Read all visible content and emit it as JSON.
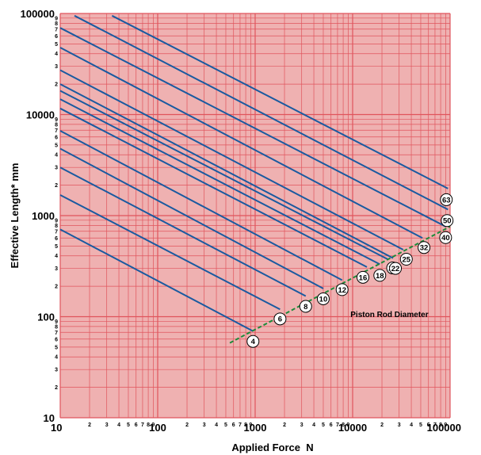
{
  "chart_data": {
    "type": "line",
    "title": "",
    "xlabel": "Applied Force  N",
    "ylabel": "Effective Length* mm",
    "xscale": "log",
    "yscale": "log",
    "xlim": [
      10,
      100000
    ],
    "ylim": [
      10,
      100000
    ],
    "grid": true,
    "x_major_ticks": [
      "10",
      "100",
      "1000",
      "10000",
      "100000"
    ],
    "x_minor_ticks": [
      "2",
      "3",
      "4",
      "5",
      "6",
      "7",
      "8",
      "9"
    ],
    "y_major_ticks": [
      "10",
      "100",
      "1000",
      "10000",
      "100000"
    ],
    "y_minor_ticks": [
      "2",
      "3",
      "4",
      "5",
      "6",
      "7",
      "8",
      "9"
    ],
    "annotation": "Piston Rod Diameter",
    "series": [
      {
        "name": "4",
        "x": [
          10,
          950
        ],
        "y": [
          730,
          72
        ]
      },
      {
        "name": "6",
        "x": [
          10,
          1800
        ],
        "y": [
          1600,
          118
        ]
      },
      {
        "name": "8",
        "x": [
          10,
          3300
        ],
        "y": [
          3000,
          160
        ]
      },
      {
        "name": "10",
        "x": [
          10,
          5000
        ],
        "y": [
          4600,
          190
        ]
      },
      {
        "name": "12",
        "x": [
          10,
          7800
        ],
        "y": [
          6900,
          230
        ]
      },
      {
        "name": "16",
        "x": [
          10,
          14000
        ],
        "y": [
          11500,
          310
        ]
      },
      {
        "name": "18",
        "x": [
          10,
          19000
        ],
        "y": [
          14200,
          330
        ]
      },
      {
        "name": "20",
        "x": [
          10,
          23000
        ],
        "y": [
          17200,
          370
        ]
      },
      {
        "name": "22",
        "x": [
          10,
          26000
        ],
        "y": [
          20000,
          380
        ]
      },
      {
        "name": "25",
        "x": [
          10,
          33000
        ],
        "y": [
          27500,
          460
        ]
      },
      {
        "name": "32",
        "x": [
          10,
          52000
        ],
        "y": [
          46000,
          600
        ]
      },
      {
        "name": "40",
        "x": [
          10,
          90000
        ],
        "y": [
          72000,
          780
        ]
      },
      {
        "name": "50",
        "x": [
          14,
          95000
        ],
        "y": [
          95000,
          1150
        ]
      },
      {
        "name": "63",
        "x": [
          34,
          95000
        ],
        "y": [
          95000,
          1850
        ]
      }
    ],
    "limit_line": {
      "name": "Piston Rod Diameter",
      "x": [
        550,
        100000
      ],
      "y": [
        55,
        780
      ]
    }
  },
  "colors": {
    "background": "#efb1b1",
    "grid": "#e0545c",
    "series": "#1a5aa0",
    "limit_line": "#1e8a3a"
  }
}
